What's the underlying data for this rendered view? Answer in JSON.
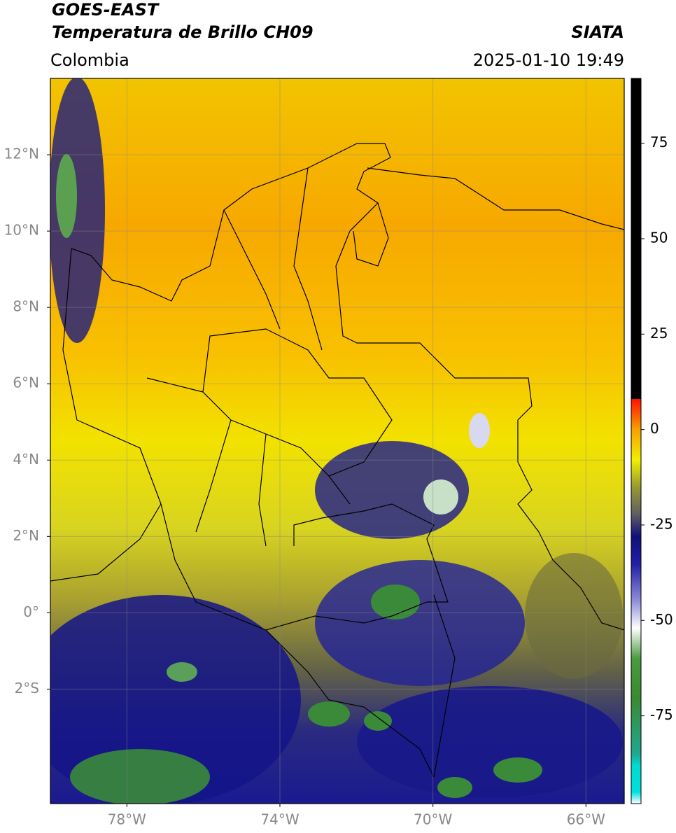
{
  "header": {
    "source": "GOES-EAST",
    "product": "Temperatura de Brillo CH09",
    "agency": "SIATA",
    "region": "Colombia",
    "datetime": "2025-01-10 19:49"
  },
  "map": {
    "lonlim": [
      -80,
      -65
    ],
    "latlim": [
      -5,
      14
    ],
    "lonticks": [
      {
        "value": -78,
        "label": "78°W"
      },
      {
        "value": -74,
        "label": "74°W"
      },
      {
        "value": -70,
        "label": "70°W"
      },
      {
        "value": -66,
        "label": "66°W"
      }
    ],
    "latticks": [
      {
        "value": 12,
        "label": "12°N"
      },
      {
        "value": 10,
        "label": "10°N"
      },
      {
        "value": 8,
        "label": "8°N"
      },
      {
        "value": 6,
        "label": "6°N"
      },
      {
        "value": 4,
        "label": "4°N"
      },
      {
        "value": 2,
        "label": "2°N"
      },
      {
        "value": 0,
        "label": "0°"
      },
      {
        "value": -2,
        "label": "2°S"
      }
    ],
    "grid": true
  },
  "colorbar": {
    "lim": [
      -98,
      92
    ],
    "ticks": [
      75,
      50,
      25,
      0,
      -25,
      -50,
      -75
    ]
  }
}
